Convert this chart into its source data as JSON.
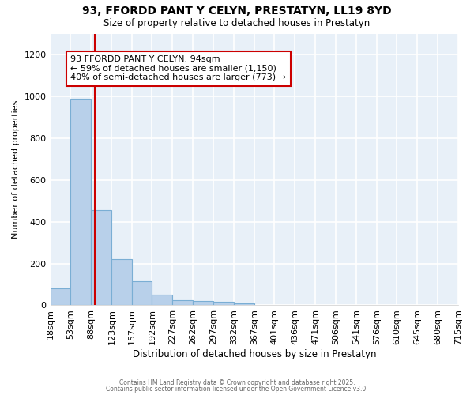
{
  "title_line1": "93, FFORDD PANT Y CELYN, PRESTATYN, LL19 8YD",
  "title_line2": "Size of property relative to detached houses in Prestatyn",
  "xlabel": "Distribution of detached houses by size in Prestatyn",
  "ylabel": "Number of detached properties",
  "bar_color": "#b8d0ea",
  "bar_edge_color": "#7aaed4",
  "background_color": "#e8f0f8",
  "grid_color": "#ffffff",
  "vline_color": "#cc0000",
  "vline_value": 94,
  "annotation_text": "93 FFORDD PANT Y CELYN: 94sqm\n← 59% of detached houses are smaller (1,150)\n40% of semi-detached houses are larger (773) →",
  "bin_edges": [
    18,
    53,
    88,
    123,
    157,
    192,
    227,
    262,
    297,
    332,
    367,
    401,
    436,
    471,
    506,
    541,
    576,
    610,
    645,
    680,
    715
  ],
  "bin_labels": [
    "18sqm",
    "53sqm",
    "88sqm",
    "123sqm",
    "157sqm",
    "192sqm",
    "227sqm",
    "262sqm",
    "297sqm",
    "332sqm",
    "367sqm",
    "401sqm",
    "436sqm",
    "471sqm",
    "506sqm",
    "541sqm",
    "576sqm",
    "610sqm",
    "645sqm",
    "680sqm",
    "715sqm"
  ],
  "bar_heights": [
    80,
    990,
    455,
    220,
    115,
    50,
    25,
    20,
    15,
    10,
    0,
    0,
    0,
    0,
    0,
    0,
    0,
    0,
    0,
    0
  ],
  "ylim": [
    0,
    1300
  ],
  "yticks": [
    0,
    200,
    400,
    600,
    800,
    1000,
    1200
  ],
  "footer_line1": "Contains HM Land Registry data © Crown copyright and database right 2025.",
  "footer_line2": "Contains public sector information licensed under the Open Government Licence v3.0."
}
